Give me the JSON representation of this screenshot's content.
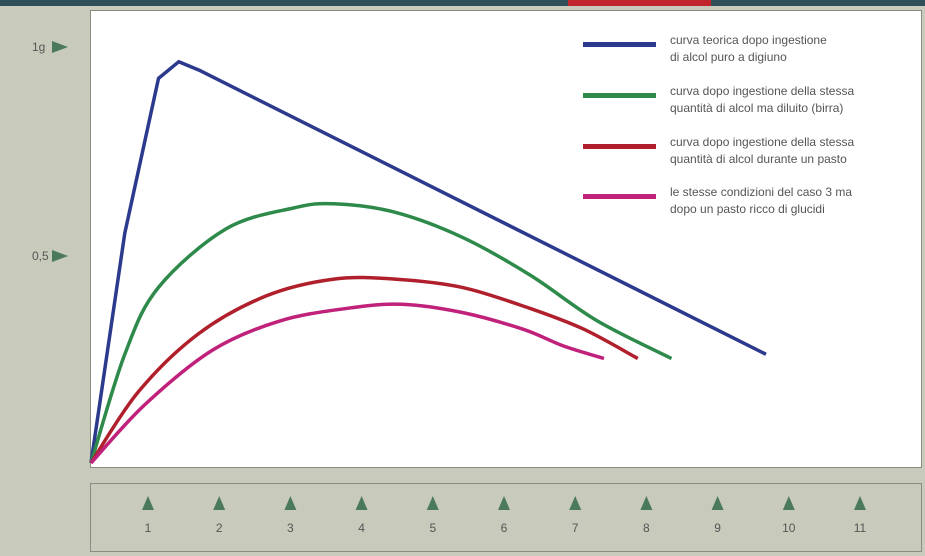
{
  "chart_data": {
    "type": "line",
    "title": "",
    "xlabel": "",
    "ylabel": "",
    "xlim": [
      0,
      11
    ],
    "ylim": [
      0,
      1
    ],
    "x_ticks": [
      "1",
      "2",
      "3",
      "4",
      "5",
      "6",
      "7",
      "8",
      "9",
      "10",
      "11"
    ],
    "y_ticks": [
      {
        "value": 1.0,
        "label": "1g"
      },
      {
        "value": 0.5,
        "label": "0,5"
      }
    ],
    "legend_position": "top-right",
    "grid": false,
    "series": [
      {
        "legend_lines": [
          "curva teorica dopo ingestione",
          "di alcol puro a digiuno"
        ],
        "color": "#2b3a8c",
        "points": [
          [
            0,
            0
          ],
          [
            0.5,
            0.55
          ],
          [
            1.0,
            0.92
          ],
          [
            1.3,
            0.96
          ],
          [
            1.6,
            0.94
          ],
          [
            10.0,
            0.26
          ]
        ],
        "smooth": false
      },
      {
        "legend_lines": [
          "curva dopo ingestione della stessa",
          "quantità di alcol ma diluito (birra)"
        ],
        "color": "#2d8a4a",
        "points": [
          [
            0,
            0
          ],
          [
            0.5,
            0.26
          ],
          [
            1,
            0.42
          ],
          [
            2,
            0.56
          ],
          [
            3,
            0.61
          ],
          [
            3.6,
            0.62
          ],
          [
            4.5,
            0.6
          ],
          [
            5.5,
            0.54
          ],
          [
            6.5,
            0.45
          ],
          [
            7.5,
            0.34
          ],
          [
            8.6,
            0.25
          ]
        ],
        "smooth": true
      },
      {
        "legend_lines": [
          "curva dopo ingestione della stessa",
          "quantità di alcol durante un pasto"
        ],
        "color": "#b0202c",
        "points": [
          [
            0,
            0
          ],
          [
            0.7,
            0.17
          ],
          [
            1.6,
            0.31
          ],
          [
            2.6,
            0.4
          ],
          [
            3.6,
            0.44
          ],
          [
            4.5,
            0.44
          ],
          [
            5.5,
            0.42
          ],
          [
            6.5,
            0.37
          ],
          [
            7.3,
            0.32
          ],
          [
            8.1,
            0.25
          ]
        ],
        "smooth": true
      },
      {
        "legend_lines": [
          "le stesse condizioni del caso 3 ma",
          "dopo un pasto ricco di glucidi"
        ],
        "color": "#c0217a",
        "points": [
          [
            0,
            0
          ],
          [
            0.8,
            0.14
          ],
          [
            1.8,
            0.27
          ],
          [
            2.8,
            0.34
          ],
          [
            3.8,
            0.37
          ],
          [
            4.6,
            0.38
          ],
          [
            5.5,
            0.36
          ],
          [
            6.4,
            0.32
          ],
          [
            7.0,
            0.28
          ],
          [
            7.6,
            0.25
          ]
        ],
        "smooth": true
      }
    ]
  }
}
